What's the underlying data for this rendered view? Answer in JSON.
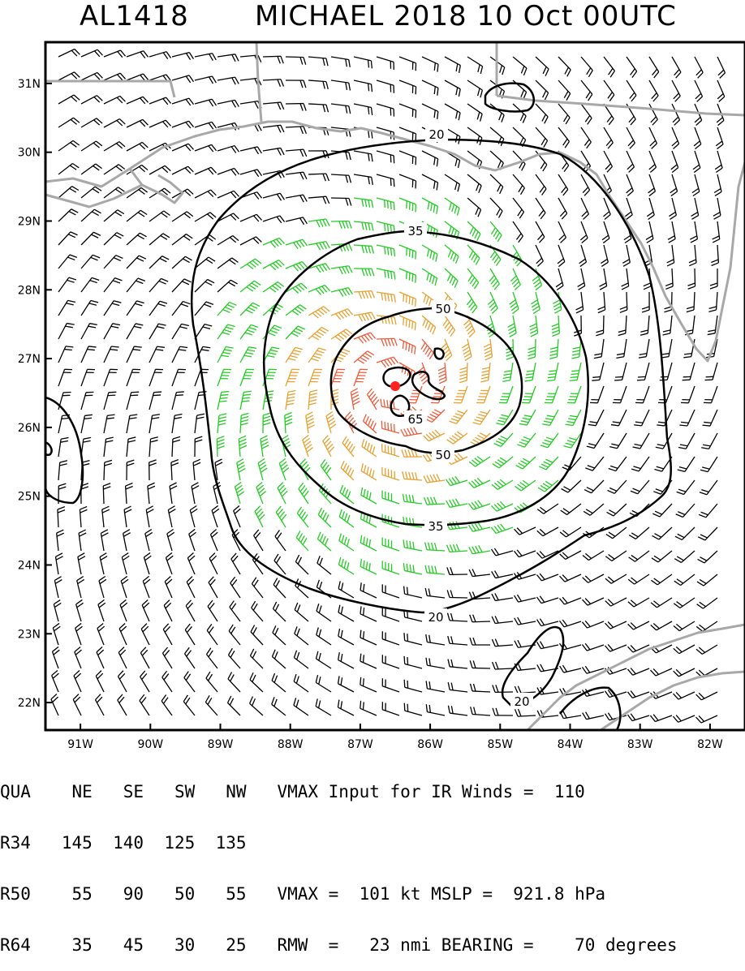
{
  "title": {
    "storm_id": "AL1418",
    "headline": "MICHAEL 2018 10 Oct 00UTC"
  },
  "map": {
    "lat_labels": [
      "31N",
      "30N",
      "29N",
      "28N",
      "27N",
      "26N",
      "25N",
      "24N",
      "23N",
      "22N"
    ],
    "lon_labels": [
      "91W",
      "90W",
      "89W",
      "88W",
      "87W",
      "86W",
      "85W",
      "84W",
      "83W",
      "82W"
    ],
    "lat_range": [
      21.6,
      31.6
    ],
    "lon_range": [
      91.5,
      81.5
    ],
    "contour_levels_kt": [
      "20",
      "35",
      "50",
      "65"
    ],
    "colors": {
      "background": "#ffffff",
      "coastline": "#a8a8a8",
      "contour": "#000000",
      "barb_under_34": "#000000",
      "barb_34_to_50": "#22cc22",
      "barb_50_to_64": "#e8a030",
      "barb_64_plus": "#ee5a3a",
      "center": "#ff2020"
    },
    "center": {
      "lat": 26.6,
      "lon": 86.5
    }
  },
  "table": {
    "header": [
      "QUA",
      "NE",
      "SE",
      "SW",
      "NW"
    ],
    "rows": [
      {
        "label": "R34",
        "values": [
          "145",
          "140",
          "125",
          "135"
        ]
      },
      {
        "label": "R50",
        "values": [
          "55",
          "90",
          "50",
          "55"
        ]
      },
      {
        "label": "R64",
        "values": [
          "35",
          "45",
          "30",
          "25"
        ]
      }
    ]
  },
  "stats": {
    "line1": "VMAX Input for IR Winds =  110",
    "line2": "VMAX =  101 kt MSLP =  921.8 hPa",
    "line3": "RMW  =   23 nmi BEARING =    70 degrees"
  }
}
